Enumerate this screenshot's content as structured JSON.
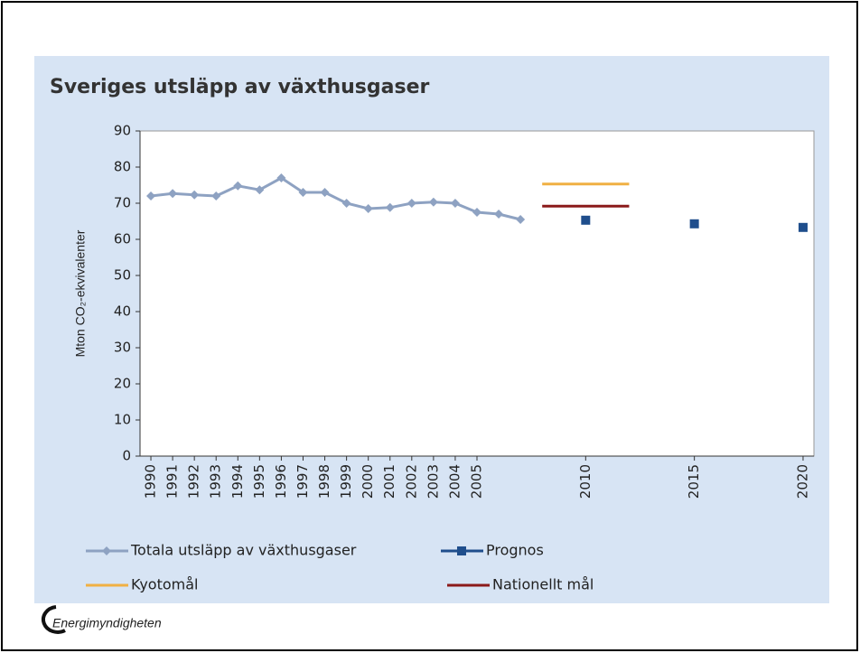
{
  "chart_data": {
    "type": "line",
    "title": "Sveriges utsläpp av växthusgaser",
    "y_label": "Mton CO₂-ekvivalenter",
    "xlim": [
      1989.5,
      2020.5
    ],
    "xticks": [
      1990,
      1991,
      1992,
      1993,
      1994,
      1995,
      1996,
      1997,
      1998,
      1999,
      2000,
      2001,
      2002,
      2003,
      2004,
      2005,
      2010,
      2015,
      2020
    ],
    "ylim": [
      0,
      90
    ],
    "yticks": [
      0,
      10,
      20,
      30,
      40,
      50,
      60,
      70,
      80,
      90
    ],
    "series": [
      {
        "name": "Totala utsläpp av växthusgaser",
        "type": "line",
        "color": "#8ea2c2",
        "x": [
          1990,
          1991,
          1992,
          1993,
          1994,
          1995,
          1996,
          1997,
          1998,
          1999,
          2000,
          2001,
          2002,
          2003,
          2004,
          2005,
          2006,
          2007
        ],
        "values": [
          72,
          72.7,
          72.3,
          72,
          74.8,
          73.7,
          77,
          73,
          73,
          70,
          68.5,
          68.8,
          70,
          70.3,
          70,
          67.5,
          67,
          65.5
        ]
      },
      {
        "name": "Prognos",
        "type": "scatter",
        "color": "#1f4e8c",
        "x": [
          2010,
          2015,
          2020
        ],
        "values": [
          65.3,
          64.3,
          63.3
        ]
      },
      {
        "name": "Kyotomål",
        "type": "hline",
        "color": "#f0b043",
        "x": [
          2008,
          2012
        ],
        "values": [
          75.3,
          75.3
        ]
      },
      {
        "name": "Nationellt mål",
        "type": "hline",
        "color": "#8b1a1a",
        "x": [
          2008,
          2012
        ],
        "values": [
          69.2,
          69.2
        ]
      }
    ],
    "source": "Energimyndigheten"
  }
}
